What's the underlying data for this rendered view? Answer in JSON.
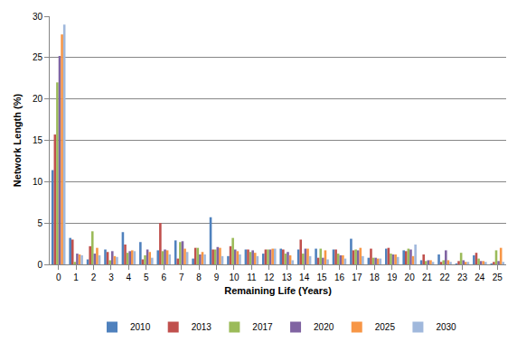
{
  "chart_data": {
    "type": "bar",
    "x_label": "Remaining Life (Years)",
    "y_label": "Network Length (%)",
    "categories": [
      "0",
      "1",
      "2",
      "3",
      "4",
      "5",
      "6",
      "7",
      "8",
      "9",
      "10",
      "11",
      "12",
      "13",
      "14",
      "15",
      "16",
      "17",
      "18",
      "19",
      "20",
      "21",
      "22",
      "23",
      "24",
      "25"
    ],
    "series": [
      {
        "name": "2010",
        "color": "#4f81bd",
        "values": [
          11.4,
          3.2,
          0.6,
          1.8,
          3.9,
          2.7,
          1.7,
          2.9,
          0.7,
          5.7,
          1.0,
          1.8,
          1.3,
          1.9,
          1.8,
          1.9,
          1.8,
          3.1,
          0.8,
          1.9,
          1.7,
          0.5,
          1.2,
          0.1,
          1.1,
          0.1
        ]
      },
      {
        "name": "2013",
        "color": "#c0504d",
        "values": [
          15.7,
          3.0,
          2.2,
          1.5,
          2.4,
          0.6,
          5.0,
          0.7,
          2.0,
          1.8,
          2.2,
          1.8,
          1.8,
          1.8,
          3.0,
          0.8,
          1.8,
          1.7,
          1.9,
          2.0,
          1.6,
          1.2,
          0.3,
          0.4,
          1.4,
          0.3
        ]
      },
      {
        "name": "2017",
        "color": "#9bbb59",
        "values": [
          22.0,
          0.3,
          4.0,
          0.5,
          1.4,
          1.1,
          1.6,
          2.7,
          2.0,
          1.8,
          3.2,
          1.5,
          1.8,
          1.3,
          1.3,
          1.9,
          1.3,
          1.8,
          0.8,
          1.3,
          1.9,
          0.4,
          0.5,
          1.4,
          0.7,
          1.7
        ]
      },
      {
        "name": "2020",
        "color": "#8064a2",
        "values": [
          25.2,
          1.3,
          1.3,
          1.6,
          1.6,
          1.8,
          1.8,
          2.8,
          1.2,
          2.1,
          1.8,
          1.7,
          1.8,
          1.5,
          1.9,
          0.8,
          1.1,
          1.7,
          0.8,
          1.2,
          1.8,
          0.5,
          1.7,
          0.5,
          0.4,
          0.4
        ]
      },
      {
        "name": "2025",
        "color": "#f79646",
        "values": [
          27.8,
          1.2,
          2.0,
          1.0,
          1.7,
          1.5,
          1.7,
          1.9,
          1.5,
          2.0,
          1.6,
          1.4,
          1.9,
          1.1,
          1.9,
          1.7,
          1.1,
          2.0,
          0.7,
          1.2,
          1.0,
          0.5,
          0.5,
          0.3,
          0.4,
          2.0
        ]
      },
      {
        "name": "2030",
        "color": "#a0b8dc",
        "values": [
          29.0,
          1.1,
          1.1,
          0.9,
          1.6,
          0.8,
          1.2,
          1.5,
          1.2,
          1.0,
          1.2,
          1.0,
          1.9,
          0.5,
          1.0,
          0.6,
          0.7,
          1.0,
          0.7,
          0.9,
          2.4,
          0.3,
          0.3,
          0.3,
          0.3,
          0.3
        ]
      }
    ],
    "ylim": [
      0,
      30
    ],
    "yticks": [
      0,
      5,
      10,
      15,
      20,
      25,
      30
    ],
    "grid": true,
    "legend": "bottom"
  }
}
